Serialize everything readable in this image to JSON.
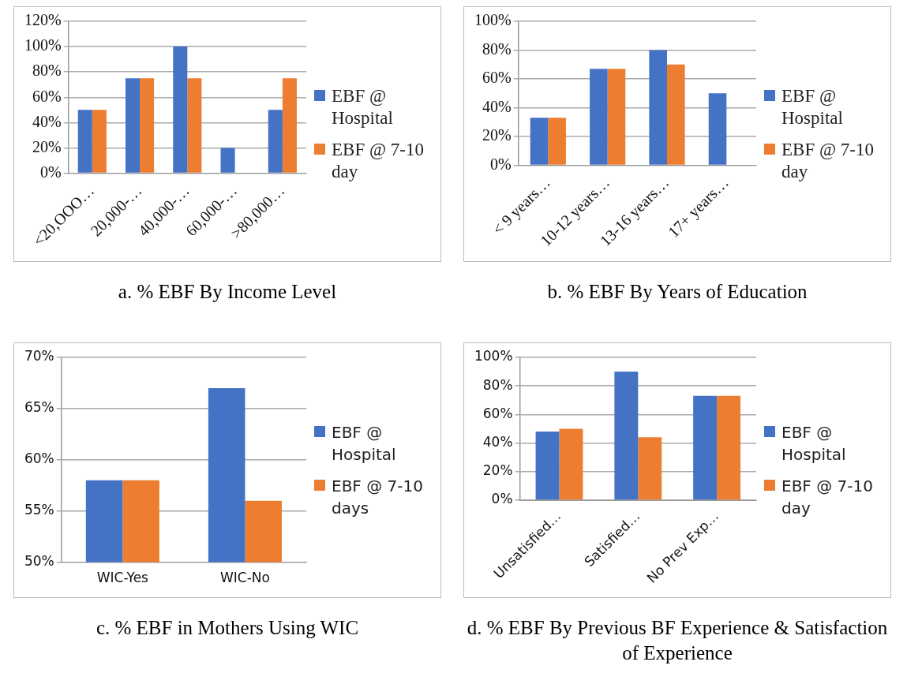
{
  "chart_data": [
    {
      "type": "bar",
      "title": "a. % EBF By Income Level",
      "categories": [
        "<20,OOO…",
        "20,000-…",
        "40,000-…",
        "60,000-…",
        ">80,000…"
      ],
      "series": [
        {
          "name": "EBF @ Hospital",
          "color": "#4472c4",
          "values": [
            50,
            75,
            100,
            20,
            50
          ]
        },
        {
          "name": "EBF @ 7-10 day",
          "color": "#ed7d31",
          "values": [
            50,
            75,
            75,
            null,
            75
          ]
        }
      ],
      "ylim": [
        0,
        120
      ],
      "yticks": [
        {
          "value": 0,
          "label": "0%"
        },
        {
          "value": 20,
          "label": "20%"
        },
        {
          "value": 40,
          "label": "40%"
        },
        {
          "value": 60,
          "label": "60%"
        },
        {
          "value": 80,
          "label": "80%"
        },
        {
          "value": 100,
          "label": "100%"
        },
        {
          "value": 120,
          "label": "120%"
        }
      ],
      "grid": "y",
      "legend": "right"
    },
    {
      "type": "bar",
      "title": "b. % EBF By Years of Education",
      "categories": [
        "< 9 years…",
        "10-12 years…",
        "13-16 years…",
        "17+ years…"
      ],
      "series": [
        {
          "name": "EBF @ Hospital",
          "color": "#4472c4",
          "values": [
            33,
            67,
            80,
            50
          ]
        },
        {
          "name": "EBF @ 7-10 day",
          "color": "#ed7d31",
          "values": [
            33,
            67,
            70,
            null
          ]
        }
      ],
      "ylim": [
        0,
        100
      ],
      "yticks": [
        {
          "value": 0,
          "label": "0%"
        },
        {
          "value": 20,
          "label": "20%"
        },
        {
          "value": 40,
          "label": "40%"
        },
        {
          "value": 60,
          "label": "60%"
        },
        {
          "value": 80,
          "label": "80%"
        },
        {
          "value": 100,
          "label": "100%"
        }
      ],
      "grid": "y",
      "legend": "right"
    },
    {
      "type": "bar",
      "title": "c. % EBF in Mothers Using WIC",
      "categories": [
        "WIC-Yes",
        "WIC-No"
      ],
      "series": [
        {
          "name": "EBF @ Hospital",
          "color": "#4472c4",
          "values": [
            58,
            67
          ]
        },
        {
          "name": "EBF @ 7-10 days",
          "color": "#ed7d31",
          "values": [
            58,
            56
          ]
        }
      ],
      "ylim": [
        50,
        70
      ],
      "yticks": [
        {
          "value": 50,
          "label": "50%"
        },
        {
          "value": 55,
          "label": "55%"
        },
        {
          "value": 60,
          "label": "60%"
        },
        {
          "value": 65,
          "label": "65%"
        },
        {
          "value": 70,
          "label": "70%"
        }
      ],
      "grid": "y",
      "legend": "right"
    },
    {
      "type": "bar",
      "title": "d. % EBF By Previous BF Experience & Satisfaction of Experience",
      "categories": [
        "Unsatisfied…",
        "Satisfied…",
        "No Prev Exp…"
      ],
      "series": [
        {
          "name": "EBF @ Hospital",
          "color": "#4472c4",
          "values": [
            48,
            90,
            73
          ]
        },
        {
          "name": "EBF @ 7-10 day",
          "color": "#ed7d31",
          "values": [
            50,
            44,
            73
          ]
        }
      ],
      "ylim": [
        0,
        100
      ],
      "yticks": [
        {
          "value": 0,
          "label": "0%"
        },
        {
          "value": 20,
          "label": "20%"
        },
        {
          "value": 40,
          "label": "40%"
        },
        {
          "value": 60,
          "label": "60%"
        },
        {
          "value": 80,
          "label": "80%"
        },
        {
          "value": 100,
          "label": "100%"
        }
      ],
      "grid": "y",
      "legend": "right"
    }
  ]
}
